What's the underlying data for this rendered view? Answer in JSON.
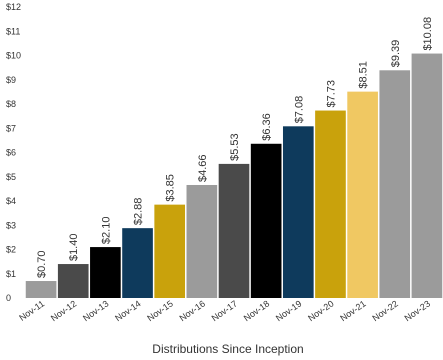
{
  "chart_data": {
    "type": "bar",
    "xlabel": "Distributions Since Inception",
    "ylabel": "",
    "ylim": [
      0,
      12
    ],
    "y_ticks": [
      {
        "value": 0,
        "label": "0"
      },
      {
        "value": 1,
        "label": "$1"
      },
      {
        "value": 2,
        "label": "$2"
      },
      {
        "value": 3,
        "label": "$3"
      },
      {
        "value": 4,
        "label": "$4"
      },
      {
        "value": 5,
        "label": "$5"
      },
      {
        "value": 6,
        "label": "$6"
      },
      {
        "value": 7,
        "label": "$7"
      },
      {
        "value": 8,
        "label": "$8"
      },
      {
        "value": 9,
        "label": "$9"
      },
      {
        "value": 10,
        "label": "$10"
      },
      {
        "value": 11,
        "label": "$11"
      },
      {
        "value": 12,
        "label": "$12"
      }
    ],
    "categories": [
      "Nov-11",
      "Nov-12",
      "Nov-13",
      "Nov-14",
      "Nov-15",
      "Nov-16",
      "Nov-17",
      "Nov-18",
      "Nov-19",
      "Nov-20",
      "Nov-21",
      "Nov-22",
      "Nov-23"
    ],
    "values": [
      0.7,
      1.4,
      2.1,
      2.88,
      3.85,
      4.66,
      5.53,
      6.36,
      7.08,
      7.73,
      8.51,
      9.39,
      10.08
    ],
    "data_labels": [
      "$0.70",
      "$1.40",
      "$2.10",
      "$2.88",
      "$3.85",
      "$4.66",
      "$5.53",
      "$6.36",
      "$7.08",
      "$7.73",
      "$8.51",
      "$9.39",
      "$10.08"
    ],
    "colors": [
      "#9b9b9b",
      "#4a4a4a",
      "#000000",
      "#0e3a5c",
      "#c9a20c",
      "#9b9b9b",
      "#4a4a4a",
      "#000000",
      "#0e3a5c",
      "#c9a20c",
      "#f0c862",
      "#9b9b9b",
      "#9b9b9b"
    ],
    "grid": false,
    "legend": "none"
  }
}
